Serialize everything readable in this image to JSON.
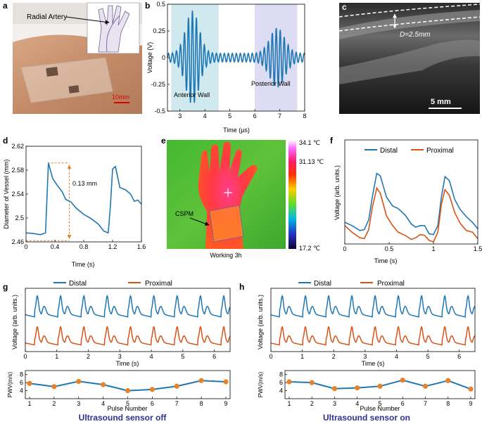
{
  "panels": {
    "a": {
      "letter": "a",
      "annotation": "Radial Artery",
      "scale_bar": "10mm"
    },
    "b": {
      "letter": "b",
      "ylabel": "Voltage (V)",
      "xlabel": "Time (µs)",
      "label_anterior": "Anterior Wall",
      "label_posterior": "Posterior Wall"
    },
    "c": {
      "letter": "c",
      "diameter_label": "D=2.5mm",
      "scale_bar": "5 mm"
    },
    "d": {
      "letter": "d",
      "ylabel": "Diameter of Vessel (mm)",
      "xlabel": "Time (s)",
      "annotation": "0.13 mm"
    },
    "e": {
      "letter": "e",
      "max_temp": "34.1 ℃",
      "mid_temp": "31.13 ℃",
      "min_temp": "17.2 ℃",
      "device_label": "CSPM",
      "caption": "Working 3h"
    },
    "f": {
      "letter": "f",
      "ylabel": "Voltage (arb. units.)",
      "xlabel": "Time (s)",
      "legend_distal": "Distal",
      "legend_proximal": "Proximal"
    },
    "g": {
      "letter": "g",
      "ylabel_top": "Voltage (arb. units.)",
      "xlabel_top": "Time (s)",
      "ylabel_bottom": "PWV(m/s)",
      "xlabel_bottom": "Pulse Number",
      "legend_distal": "Distal",
      "legend_proximal": "Proximal",
      "caption": "Ultrasound sensor off"
    },
    "h": {
      "letter": "h",
      "ylabel_top": "Voltage (arb. units.)",
      "xlabel_top": "Time (s)",
      "ylabel_bottom": "PWV(m/s)",
      "xlabel_bottom": "Pulse Number",
      "legend_distal": "Distal",
      "legend_proximal": "Proximal",
      "caption": "Ultrasound sensor on"
    }
  },
  "colors": {
    "distal": "#1f77b4",
    "proximal": "#d95319",
    "pwv_marker": "#e8822a",
    "caption": "#2e3192",
    "anterior_band": "#cfe9ef",
    "posterior_band": "#dcdcf2",
    "arrow": "#e8822a"
  },
  "chart_data": [
    {
      "id": "b",
      "type": "line",
      "title": "",
      "xlabel": "Time (µs)",
      "ylabel": "Voltage (V)",
      "xlim": [
        2.5,
        8
      ],
      "ylim": [
        -0.5,
        0.5
      ],
      "xticks": [
        3,
        4,
        5,
        6,
        7,
        8
      ],
      "yticks": [
        -0.5,
        -0.25,
        0,
        0.25,
        0.5
      ],
      "ytick_labels": [
        "-0.5",
        "-0.25",
        "0",
        "0.25",
        "0.5"
      ],
      "bands": [
        {
          "name": "Anterior Wall",
          "x": [
            2.65,
            4.55
          ]
        },
        {
          "name": "Posterior Wall",
          "x": [
            6.0,
            7.7
          ]
        }
      ],
      "signal": {
        "x_start": 2.5,
        "x_end": 8,
        "carrier_period_us": 0.16,
        "baseline_amplitude": 0.04,
        "echoes": [
          {
            "center_us": 3.5,
            "amplitude": 0.4,
            "width_us": 0.38
          },
          {
            "center_us": 6.9,
            "amplitude": 0.24,
            "width_us": 0.42
          }
        ]
      }
    },
    {
      "id": "d",
      "type": "line",
      "xlabel": "Time (s)",
      "ylabel": "Diameter of Vessel (mm)",
      "xlim": [
        0,
        1.6
      ],
      "ylim": [
        2.46,
        2.62
      ],
      "xticks": [
        0,
        0.4,
        0.8,
        1.2,
        1.6
      ],
      "yticks": [
        2.46,
        2.5,
        2.54,
        2.58,
        2.62
      ],
      "x": [
        0,
        0.1,
        0.2,
        0.27,
        0.31,
        0.37,
        0.43,
        0.5,
        0.55,
        0.62,
        0.7,
        0.8,
        0.9,
        1.0,
        1.08,
        1.14,
        1.17,
        1.2,
        1.24,
        1.3,
        1.38,
        1.45,
        1.5,
        1.55,
        1.6
      ],
      "y": [
        2.475,
        2.474,
        2.472,
        2.475,
        2.592,
        2.566,
        2.555,
        2.544,
        2.531,
        2.527,
        2.516,
        2.506,
        2.499,
        2.49,
        2.478,
        2.475,
        2.52,
        2.582,
        2.586,
        2.551,
        2.547,
        2.54,
        2.528,
        2.53,
        2.523
      ],
      "annotation": {
        "text": "0.13 mm",
        "y_high": 2.592,
        "y_low": 2.462,
        "x_arrow": 0.3
      }
    },
    {
      "id": "e",
      "type": "heatmap",
      "colorbar_labels": [
        "34.1 ℃",
        "31.13 ℃",
        "17.2 ℃"
      ]
    },
    {
      "id": "f",
      "type": "line",
      "xlabel": "Time (s)",
      "ylabel": "Voltage (arb. units.)",
      "xlim": [
        0,
        1.5
      ],
      "ylim": [
        0,
        1
      ],
      "xticks": [
        0,
        0.5,
        1,
        1.5
      ],
      "series": [
        {
          "name": "Distal",
          "x": [
            0,
            0.08,
            0.17,
            0.22,
            0.27,
            0.31,
            0.36,
            0.4,
            0.47,
            0.54,
            0.6,
            0.68,
            0.75,
            0.8,
            0.85,
            0.9,
            0.95,
            1.0,
            1.05,
            1.09,
            1.13,
            1.18,
            1.24,
            1.3,
            1.37,
            1.44,
            1.5
          ],
          "y": [
            0.24,
            0.2,
            0.14,
            0.15,
            0.27,
            0.55,
            0.84,
            0.81,
            0.55,
            0.44,
            0.41,
            0.33,
            0.22,
            0.18,
            0.2,
            0.2,
            0.1,
            0.09,
            0.2,
            0.55,
            0.8,
            0.75,
            0.52,
            0.4,
            0.31,
            0.24,
            0.16
          ]
        },
        {
          "name": "Proximal",
          "x": [
            0,
            0.08,
            0.17,
            0.22,
            0.27,
            0.31,
            0.36,
            0.4,
            0.47,
            0.54,
            0.6,
            0.68,
            0.75,
            0.8,
            0.85,
            0.9,
            0.95,
            1.0,
            1.05,
            1.09,
            1.13,
            1.18,
            1.24,
            1.3,
            1.37,
            1.44,
            1.5
          ],
          "y": [
            0.2,
            0.12,
            0.05,
            0.04,
            0.15,
            0.42,
            0.66,
            0.6,
            0.32,
            0.2,
            0.12,
            0.08,
            0.03,
            0.05,
            0.09,
            0.08,
            0.02,
            0.0,
            0.12,
            0.46,
            0.64,
            0.57,
            0.36,
            0.23,
            0.14,
            0.12,
            0.04
          ]
        }
      ]
    },
    {
      "id": "g_top",
      "type": "line",
      "xlabel": "Time (s)",
      "ylabel": "Voltage (arb. units.)",
      "xlim": [
        0,
        6.5
      ],
      "xticks": [
        0,
        1,
        2,
        3,
        4,
        5,
        6
      ],
      "pulse_period_s": 0.74,
      "first_peak_s": 0.38,
      "series": [
        {
          "name": "Distal",
          "offset": 0.7,
          "amplitude": 0.28
        },
        {
          "name": "Proximal",
          "offset": 0.2,
          "amplitude": 0.24
        }
      ]
    },
    {
      "id": "g_bottom",
      "type": "line",
      "xlabel": "Pulse Number",
      "ylabel": "PWV(m/s)",
      "xlim": [
        1,
        9
      ],
      "ylim": [
        2,
        9
      ],
      "xticks": [
        1,
        2,
        3,
        4,
        5,
        6,
        7,
        8,
        9
      ],
      "yticks": [
        4,
        6,
        8
      ],
      "categories": [
        1,
        2,
        3,
        4,
        5,
        6,
        7,
        8,
        9
      ],
      "values": [
        5.8,
        5.0,
        6.3,
        5.5,
        4.0,
        4.3,
        5.1,
        6.5,
        6.2
      ]
    },
    {
      "id": "h_top",
      "type": "line",
      "xlabel": "Time (s)",
      "ylabel": "Voltage (arb. units.)",
      "xlim": [
        0,
        6.5
      ],
      "xticks": [
        0,
        1,
        2,
        3,
        4,
        5,
        6
      ],
      "pulse_period_s": 0.74,
      "first_peak_s": 0.36,
      "series": [
        {
          "name": "Distal",
          "offset": 0.7,
          "amplitude": 0.28
        },
        {
          "name": "Proximal",
          "offset": 0.2,
          "amplitude": 0.24
        }
      ]
    },
    {
      "id": "h_bottom",
      "type": "line",
      "xlabel": "Pulse Number",
      "ylabel": "PWV(m/s)",
      "xlim": [
        1,
        9
      ],
      "ylim": [
        2,
        9
      ],
      "xticks": [
        1,
        2,
        3,
        4,
        5,
        6,
        7,
        8,
        9
      ],
      "yticks": [
        4,
        6,
        8
      ],
      "categories": [
        1,
        2,
        3,
        4,
        5,
        6,
        7,
        8,
        9
      ],
      "values": [
        6.2,
        6.0,
        4.5,
        4.7,
        5.1,
        6.6,
        5.1,
        6.5,
        4.4
      ]
    }
  ]
}
